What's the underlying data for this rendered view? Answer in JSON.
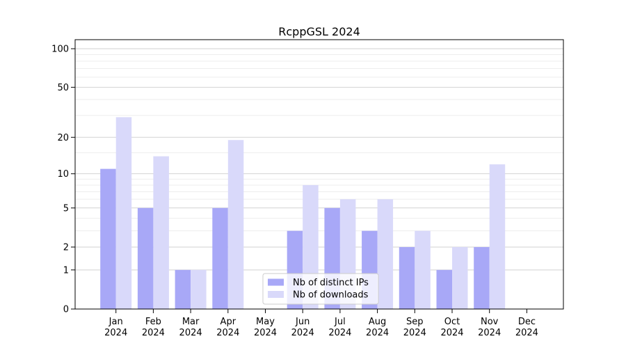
{
  "chart_data": {
    "type": "bar",
    "title": "RcppGSL 2024",
    "categories": [
      "Jan\n2024",
      "Feb\n2024",
      "Mar\n2024",
      "Apr\n2024",
      "May\n2024",
      "Jun\n2024",
      "Jul\n2024",
      "Aug\n2024",
      "Sep\n2024",
      "Oct\n2024",
      "Nov\n2024",
      "Dec\n2024"
    ],
    "series": [
      {
        "name": "Nb of distinct IPs",
        "color": "#a8a8f7",
        "values": [
          11,
          5,
          1,
          5,
          0,
          3,
          5,
          3,
          2,
          1,
          2,
          0
        ]
      },
      {
        "name": "Nb of downloads",
        "color": "#d9d9fa",
        "values": [
          29,
          14,
          1,
          19,
          0,
          8,
          6,
          6,
          3,
          2,
          12,
          0
        ]
      }
    ],
    "yscale": "log1p",
    "ylim": [
      0,
      100
    ],
    "yticks": [
      0,
      1,
      2,
      5,
      10,
      20,
      50,
      100
    ],
    "minor_yticks": [
      3,
      4,
      6,
      7,
      8,
      9,
      15,
      30,
      40,
      60,
      70,
      80,
      90
    ],
    "grid": "horizontal",
    "legend_position": "lower center",
    "colors": {
      "major_grid": "#d2d2d2",
      "minor_grid": "#ededed",
      "axis": "#000000",
      "text": "#000000",
      "legend_border": "#cccccc",
      "legend_bg": "rgba(255,255,255,0.8)"
    }
  }
}
